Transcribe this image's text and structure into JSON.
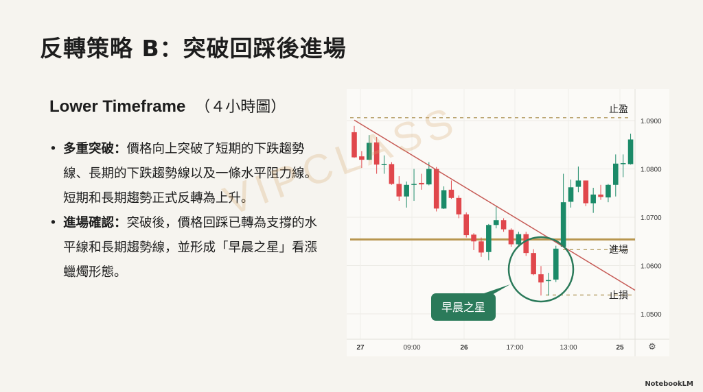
{
  "slide": {
    "title": "反轉策略 B：突破回踩後進場",
    "subheading_en": "Lower Timeframe",
    "subheading_zh": "（４小時圖）",
    "bullets": [
      {
        "lead": "多重突破：",
        "text": "價格向上突破了短期的下跌趨勢線、長期的下跌趨勢線以及一條水平阻力線。短期和長期趨勢正式反轉為上升。"
      },
      {
        "lead": "進場確認：",
        "text": "突破後，價格回踩已轉為支撐的水平線和長期趨勢線，並形成「早晨之星」看漲蠟燭形態。"
      }
    ],
    "watermark": "VIPCLASS",
    "footer": "NotebookLM"
  },
  "chart_data": {
    "type": "candlestick",
    "x_tick_labels": [
      "27",
      "09:00",
      "26",
      "17:00",
      "13:00",
      "25"
    ],
    "y_tick_labels": [
      "1.0900",
      "1.0800",
      "1.0700",
      "1.0600",
      "1.0500"
    ],
    "ylim": [
      1.0445,
      1.0965
    ],
    "grid": true,
    "colors": {
      "up": "#1b8a68",
      "down": "#e0474c",
      "trendline": "#c65a55",
      "support": "#b8964f",
      "level": "#b9a36e",
      "highlight": "#2b7a5a"
    },
    "candles": [
      [
        1.0876,
        1.0889,
        1.0823,
        1.0824
      ],
      [
        1.0826,
        1.0837,
        1.0802,
        1.0819
      ],
      [
        1.0819,
        1.087,
        1.0818,
        1.0854
      ],
      [
        1.0855,
        1.0866,
        1.079,
        1.0809
      ],
      [
        1.0809,
        1.0828,
        1.079,
        1.081
      ],
      [
        1.081,
        1.0814,
        1.0767,
        1.0769
      ],
      [
        1.0769,
        1.0785,
        1.0734,
        1.0743
      ],
      [
        1.0743,
        1.0774,
        1.072,
        1.0767
      ],
      [
        1.0767,
        1.08,
        1.0734,
        1.0769
      ],
      [
        1.0771,
        1.079,
        1.0757,
        1.0768
      ],
      [
        1.0768,
        1.0814,
        1.0766,
        1.08
      ],
      [
        1.08,
        1.0804,
        1.0712,
        1.0718
      ],
      [
        1.0718,
        1.0764,
        1.0717,
        1.0756
      ],
      [
        1.0757,
        1.0776,
        1.0738,
        1.074
      ],
      [
        1.074,
        1.0745,
        1.0698,
        1.0706
      ],
      [
        1.0706,
        1.071,
        1.0658,
        1.0663
      ],
      [
        1.0664,
        1.0667,
        1.0632,
        1.065
      ],
      [
        1.065,
        1.0658,
        1.0618,
        1.0627
      ],
      [
        1.0628,
        1.0686,
        1.0611,
        1.0684
      ],
      [
        1.0684,
        1.0722,
        1.0677,
        1.0694
      ],
      [
        1.0694,
        1.0698,
        1.067,
        1.0675
      ],
      [
        1.0674,
        1.0677,
        1.0639,
        1.0644
      ],
      [
        1.0644,
        1.067,
        1.0639,
        1.0665
      ],
      [
        1.0665,
        1.067,
        1.062,
        1.0626
      ],
      [
        1.0626,
        1.0634,
        1.058,
        1.0582
      ],
      [
        1.0582,
        1.0599,
        1.0538,
        1.0565
      ],
      [
        1.0569,
        1.0585,
        1.0538,
        1.057
      ],
      [
        1.0571,
        1.0641,
        1.0566,
        1.0635
      ],
      [
        1.0639,
        1.079,
        1.0637,
        1.0731
      ],
      [
        1.0732,
        1.0778,
        1.072,
        1.0762
      ],
      [
        1.0763,
        1.0805,
        1.0752,
        1.0776
      ],
      [
        1.0776,
        1.0776,
        1.0723,
        1.0729
      ],
      [
        1.0729,
        1.0761,
        1.0709,
        1.0747
      ],
      [
        1.0747,
        1.0767,
        1.0736,
        1.0742
      ],
      [
        1.0741,
        1.0769,
        1.0731,
        1.0767
      ],
      [
        1.0767,
        1.083,
        1.0743,
        1.0811
      ],
      [
        1.081,
        1.083,
        1.0783,
        1.0812
      ],
      [
        1.081,
        1.0873,
        1.0809,
        1.0861
      ]
    ],
    "candle_format": [
      "open",
      "high",
      "low",
      "close"
    ],
    "trendline": {
      "from": 1.0901,
      "to": 1.0549
    },
    "support_line": 1.0654,
    "levels": [
      {
        "label": "止盈",
        "value": 1.0906
      },
      {
        "label": "進場",
        "value": 1.0633
      },
      {
        "label": "止損",
        "value": 1.0539
      }
    ],
    "annotation": "早晨之星"
  }
}
